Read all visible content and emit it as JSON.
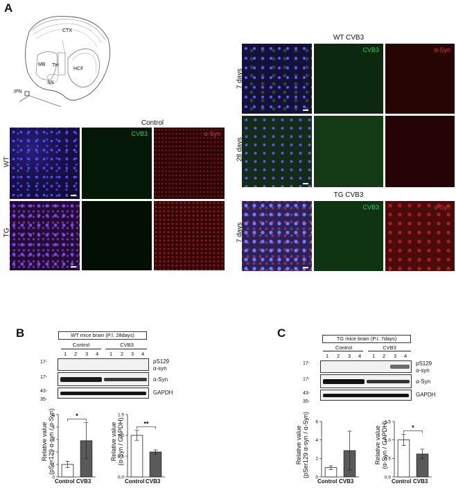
{
  "panel_a": {
    "letter": "A",
    "atlas_labels": [
      "CTX",
      "MB",
      "TH",
      "HCF",
      "SN",
      "IPN"
    ],
    "control_title": "Control",
    "row_wt": "WT",
    "row_tg": "TG",
    "cvb3_label": "CVB3",
    "asyn_label": "α-Syn",
    "wt_cvb3_title": "WT CVB3",
    "tg_cvb3_title": "TG CVB3",
    "day7": "7 days",
    "day28": "28 days"
  },
  "panel_b": {
    "letter": "B",
    "blot_title": "WT mice brain  (P.I. 28days)",
    "group_control": "Control",
    "group_cvb3": "CVB3",
    "lanes": [
      "1",
      "2",
      "3",
      "4",
      "1",
      "2",
      "3",
      "4"
    ],
    "kda": [
      "17-",
      "17-",
      "43-",
      "35-"
    ],
    "bands": [
      "pS129",
      "α-syn",
      "α-Syn",
      "GAPDH"
    ],
    "chart1_ylabel1": "Relative value",
    "chart1_ylabel2": "(pSer129 α-syn / α-Syn)",
    "chart2_ylabel1": "Relative value",
    "chart2_ylabel2": "(α-Syn / GAPDH)",
    "sig1": "*",
    "sig2": "**",
    "xcat_control": "Control",
    "xcat_cvb3": "CVB3"
  },
  "panel_c": {
    "letter": "C",
    "blot_title": "TG mice brain  (P.I. 7days)",
    "group_control": "Control",
    "group_cvb3": "CVB3",
    "lanes": [
      "1",
      "2",
      "3",
      "4",
      "1",
      "2",
      "3",
      "4"
    ],
    "kda": [
      "17-",
      "17-",
      "43-",
      "35-"
    ],
    "bands": [
      "pS129",
      "α-syn",
      "α-Syn",
      "GAPDH"
    ],
    "chart1_ylabel1": "Relative value",
    "chart1_ylabel2": "(pSer129 α-syn / α-Syn)",
    "chart2_ylabel1": "Relative value",
    "chart2_ylabel2": "(α-Syn / GAPDH)",
    "sig2": "*",
    "xcat_control": "Control",
    "xcat_cvb3": "CVB3"
  },
  "chart_data": [
    {
      "type": "bar",
      "categories": [
        "Control",
        "CVB3"
      ],
      "values": [
        1.0,
        2.9
      ],
      "errors": [
        0.25,
        1.45
      ],
      "ylim": [
        0,
        5
      ],
      "yticks": [
        0,
        1,
        2,
        3,
        4,
        5
      ],
      "xlabel": "",
      "ylabel": "Relative value (pSer129 α-syn / α-Syn)",
      "significance": "*"
    },
    {
      "type": "bar",
      "categories": [
        "Control",
        "CVB3"
      ],
      "values": [
        1.0,
        0.6
      ],
      "errors": [
        0.12,
        0.05
      ],
      "ylim": [
        0,
        1.5
      ],
      "yticks": [
        0.0,
        0.5,
        1.0,
        1.5
      ],
      "xlabel": "",
      "ylabel": "Relative value (α-Syn / GAPDH)",
      "significance": "**"
    },
    {
      "type": "bar",
      "categories": [
        "Control",
        "CVB3"
      ],
      "values": [
        1.0,
        2.85
      ],
      "errors": [
        0.2,
        2.1
      ],
      "ylim": [
        0,
        6
      ],
      "yticks": [
        0,
        2,
        4,
        6
      ],
      "xlabel": "",
      "ylabel": "Relative value (pSer129 α-syn / α-Syn)",
      "significance": ""
    },
    {
      "type": "bar",
      "categories": [
        "Control",
        "CVB3"
      ],
      "values": [
        1.0,
        0.62
      ],
      "errors": [
        0.15,
        0.13
      ],
      "ylim": [
        0,
        1.5
      ],
      "yticks": [
        0.0,
        0.5,
        1.0,
        1.5
      ],
      "xlabel": "",
      "ylabel": "Relative value (α-Syn / GAPDH)",
      "significance": "*"
    }
  ]
}
